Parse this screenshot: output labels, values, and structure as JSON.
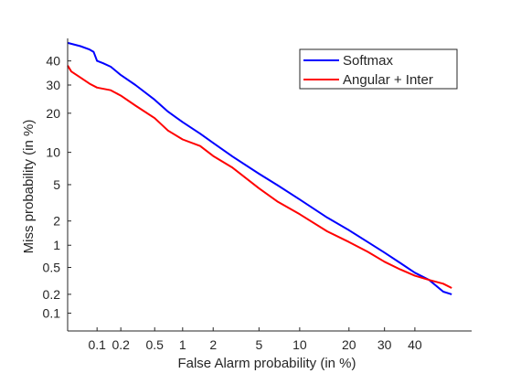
{
  "chart_data": {
    "type": "line",
    "title": "",
    "xlabel": "False Alarm probability (in %)",
    "ylabel": "Miss probability (in %)",
    "xscale": "probit",
    "yscale": "probit",
    "xlim": [
      0.04,
      60
    ],
    "ylim": [
      0.05,
      50
    ],
    "xticks": [
      0.1,
      0.2,
      0.5,
      1,
      2,
      5,
      10,
      20,
      30,
      40
    ],
    "xtick_labels": [
      "0.1",
      "0.2",
      "0.5",
      "1",
      "2",
      "5",
      "10",
      "20",
      "30",
      "40"
    ],
    "yticks": [
      0.1,
      0.2,
      0.5,
      1,
      2,
      5,
      10,
      20,
      30,
      40
    ],
    "ytick_labels": [
      "0.1",
      "0.2",
      "0.5",
      "1",
      "2",
      "5",
      "10",
      "20",
      "30",
      "40"
    ],
    "grid": false,
    "legend_position": "top-right",
    "series": [
      {
        "name": "Softmax",
        "color": "#0000ff",
        "x": [
          0.04,
          0.06,
          0.08,
          0.09,
          0.1,
          0.12,
          0.15,
          0.2,
          0.3,
          0.5,
          0.7,
          1,
          1.5,
          2,
          3,
          5,
          7,
          10,
          15,
          20,
          25,
          30,
          35,
          40,
          45,
          50,
          53
        ],
        "y": [
          48,
          46.5,
          45,
          44,
          40,
          39,
          37.5,
          34,
          30,
          24.5,
          20.5,
          17.3,
          14.2,
          12,
          9.2,
          6.4,
          4.9,
          3.5,
          2.2,
          1.55,
          1.1,
          0.8,
          0.58,
          0.42,
          0.33,
          0.22,
          0.2
        ]
      },
      {
        "name": "Angular + Inter",
        "color": "#ff0000",
        "x": [
          0.04,
          0.045,
          0.06,
          0.08,
          0.1,
          0.15,
          0.2,
          0.3,
          0.5,
          0.7,
          1,
          1.5,
          2,
          3,
          5,
          7,
          10,
          15,
          20,
          25,
          30,
          35,
          40,
          45,
          50,
          53
        ],
        "y": [
          38,
          35.5,
          33,
          30.5,
          29,
          28,
          26,
          22.5,
          18.5,
          15,
          12.8,
          11.3,
          9.3,
          7.3,
          4.6,
          3.3,
          2.4,
          1.5,
          1.1,
          0.82,
          0.6,
          0.47,
          0.38,
          0.33,
          0.29,
          0.25
        ]
      }
    ]
  }
}
